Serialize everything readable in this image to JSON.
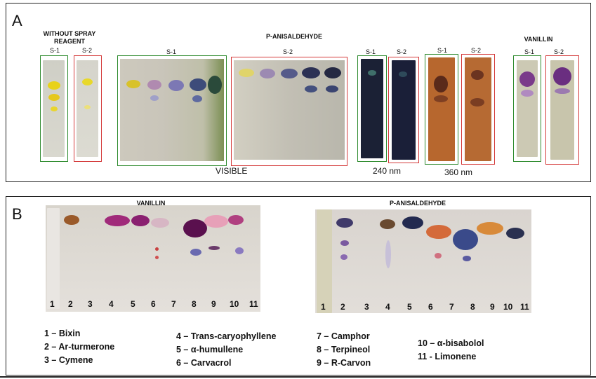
{
  "panel_a": {
    "letter": "A",
    "group_no_spray": "WITHOUT SPRAY REAGENT",
    "group_anis": "P-ANISALDEHYDE",
    "group_vanillin": "VANILLIN",
    "s1": "S-1",
    "s2": "S-2",
    "cap_visible": "VISIBLE",
    "cap_240": "240 nm",
    "cap_360": "360 nm"
  },
  "panel_b": {
    "letter": "B",
    "title_vanillin": "VANILLIN",
    "title_anis": "P-ANISALDEHYDE",
    "lanes": [
      "1",
      "2",
      "3",
      "4",
      "5",
      "6",
      "7",
      "8",
      "9",
      "10",
      "11"
    ],
    "legend_col1": [
      "1 – Bixin",
      "2 – Ar-turmerone",
      "3 – Cymene"
    ],
    "legend_col2": [
      "4 – Trans-caryophyllene",
      "5 – α-humullene",
      "6 – Carvacrol"
    ],
    "legend_col3": [
      "7 – Camphor",
      "8 – Terpineol",
      "9 – R-Carvon"
    ],
    "legend_col4": [
      "10 – α-bisabolol",
      "11 - Limonene"
    ]
  },
  "colors": {
    "green_frame": "#2e8b2e",
    "red_frame": "#d43a3a"
  }
}
